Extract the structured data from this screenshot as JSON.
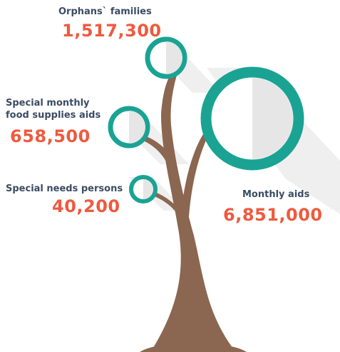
{
  "colors": {
    "trunk": "#8b6650",
    "ring": "#1aa393",
    "label": "#3b4c63",
    "value": "#ee5a3f",
    "shadow": "#eeeeee",
    "ring_inner_shade": "#e4e4e4"
  },
  "items": [
    {
      "label": "Orphans` families",
      "value": "1,517,300"
    },
    {
      "label_lines": [
        "Special monthly",
        "food supplies aids"
      ],
      "value": "658,500"
    },
    {
      "label": "Special needs persons",
      "value": "40,200"
    },
    {
      "label": "Monthly aids",
      "value": "6,851,000"
    }
  ]
}
